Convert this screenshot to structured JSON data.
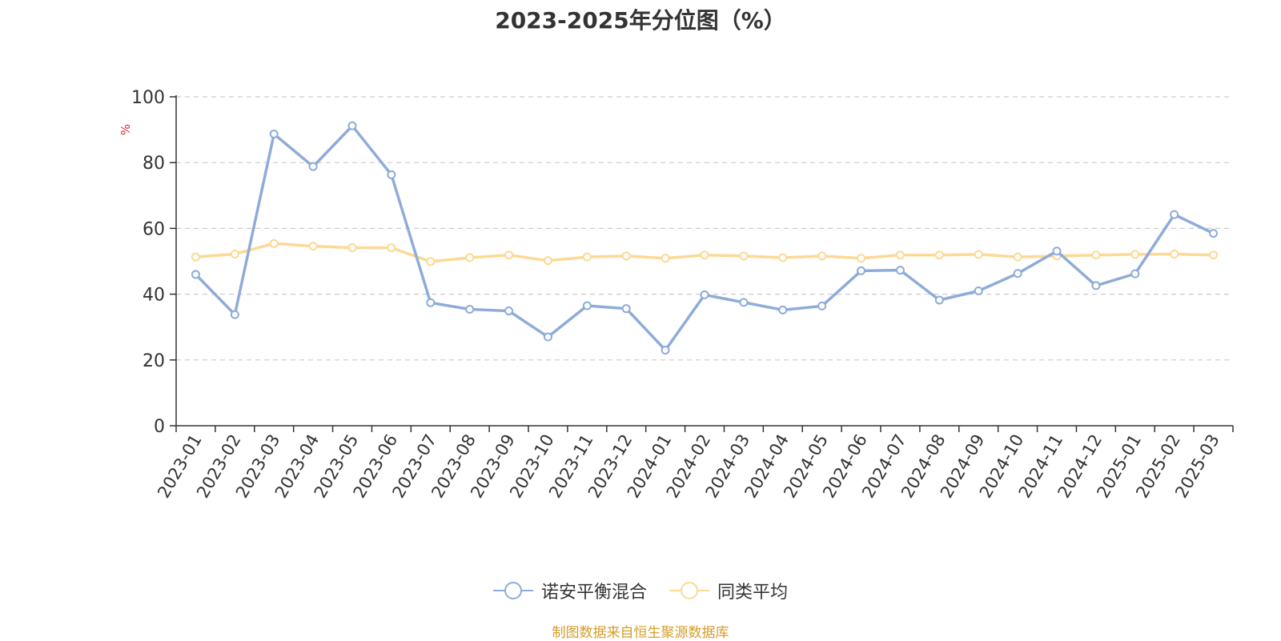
{
  "chart_data": {
    "type": "line",
    "title": "2023-2025年分位图（%）",
    "ylabel": "%",
    "ylim": [
      0,
      100
    ],
    "yticks": [
      0,
      20,
      40,
      60,
      80,
      100
    ],
    "grid": true,
    "legend_position": "bottom-center",
    "categories": [
      "2023-01",
      "2023-02",
      "2023-03",
      "2023-04",
      "2023-05",
      "2023-06",
      "2023-07",
      "2023-08",
      "2023-09",
      "2023-10",
      "2023-11",
      "2023-12",
      "2024-01",
      "2024-02",
      "2024-03",
      "2024-04",
      "2024-05",
      "2024-06",
      "2024-07",
      "2024-08",
      "2024-09",
      "2024-10",
      "2024-11",
      "2024-12",
      "2025-01",
      "2025-02",
      "2025-03"
    ],
    "series": [
      {
        "name": "诺安平衡混合",
        "color": "#8eacd9",
        "values": [
          46.0,
          33.8,
          88.7,
          78.8,
          91.2,
          76.3,
          37.4,
          35.4,
          34.9,
          27.0,
          36.5,
          35.6,
          23.0,
          39.8,
          37.5,
          35.2,
          36.4,
          47.1,
          47.3,
          38.2,
          41.0,
          46.3,
          53.1,
          42.6,
          46.2,
          64.2,
          58.5
        ]
      },
      {
        "name": "同类平均",
        "color": "#fcd995",
        "values": [
          51.3,
          52.2,
          55.4,
          54.6,
          54.1,
          54.1,
          49.9,
          51.1,
          51.9,
          50.2,
          51.3,
          51.6,
          50.9,
          51.9,
          51.6,
          51.1,
          51.6,
          50.9,
          51.9,
          51.9,
          52.1,
          51.3,
          51.6,
          51.9,
          52.1,
          52.2,
          51.9
        ]
      }
    ]
  },
  "source_note": "制图数据来自恒生聚源数据库",
  "colors": {
    "axis": "#333333",
    "grid": "#cccccc",
    "ylabel": "#e8262f",
    "source_note": "#d49e2a"
  }
}
